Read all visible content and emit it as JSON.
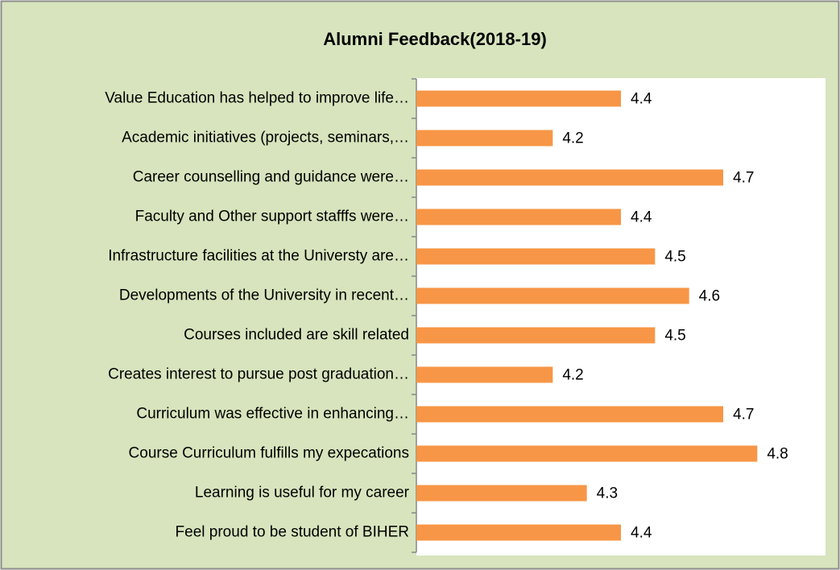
{
  "chart_data": {
    "type": "bar",
    "orientation": "horizontal",
    "title": "Alumni Feedback(2018-19)",
    "categories": [
      "Value Education has helped to improve life…",
      "Academic initiatives (projects, seminars,…",
      "Career counselling and guidance were…",
      "Faculty and Other support stafffs were…",
      "Infrastructure facilities at the Universty are…",
      "Developments of the University in recent…",
      "Courses included are skill related",
      "Creates interest to pursue post graduation…",
      "Curriculum was effective in enhancing…",
      "Course Curriculum fulfills my expecations",
      "Learning is useful for my career",
      "Feel proud to be student of BIHER"
    ],
    "values": [
      4.4,
      4.2,
      4.7,
      4.4,
      4.5,
      4.6,
      4.5,
      4.2,
      4.7,
      4.8,
      4.3,
      4.4
    ],
    "color": "#f79646",
    "xlim": [
      3.8,
      5.0
    ]
  }
}
